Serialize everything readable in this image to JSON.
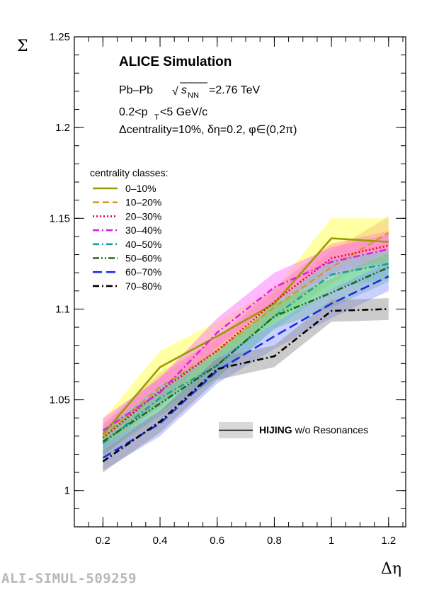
{
  "chart_data": {
    "type": "line",
    "title": "ALICE Simulation",
    "system_label": "Pb–Pb",
    "energy_symbol": "√",
    "energy_var": "s",
    "energy_sub": "NN",
    "energy_value": "=2.76 TeV",
    "pt_label": "0.2<p",
    "pt_sub": "T",
    "pt_rest": "<5 GeV/c",
    "cut_label": "Δcentrality=10%, δη=0.2, φ∈(0,2π)",
    "xlabel": "Δη",
    "ylabel": "Σ",
    "xlim": [
      0.1,
      1.26
    ],
    "ylim": [
      0.98,
      1.25
    ],
    "x_ticks": [
      0.2,
      0.4,
      0.6,
      0.8,
      1,
      1.2
    ],
    "x_tick_labels": [
      "0.2",
      "0.4",
      "0.6",
      "0.8",
      "1",
      "1.2"
    ],
    "y_ticks": [
      1,
      1.05,
      1.1,
      1.15,
      1.2,
      1.25
    ],
    "y_tick_labels": [
      "1",
      "1.05",
      "1.1",
      "1.15",
      "1.2",
      "1.25"
    ],
    "legend_title": "centrality classes:",
    "legend_placement": "left",
    "grid": false,
    "x": [
      0.2,
      0.4,
      0.6,
      0.8,
      1.0,
      1.2
    ],
    "series": [
      {
        "name": "0–10%",
        "color": "#9a9a00",
        "dash": "solid",
        "band_color": "#ffff33",
        "values": [
          1.031,
          1.068,
          1.085,
          1.103,
          1.139,
          1.137
        ],
        "band": [
          0.008,
          0.009,
          0.008,
          0.008,
          0.011,
          0.013
        ]
      },
      {
        "name": "10–20%",
        "color": "#d79a2a",
        "dash": "dash",
        "band_color": "#f0c070",
        "values": [
          1.03,
          1.057,
          1.077,
          1.101,
          1.123,
          1.142
        ],
        "band": [
          0.007,
          0.008,
          0.007,
          0.008,
          0.009,
          0.009
        ]
      },
      {
        "name": "20–30%",
        "color": "#e8002e",
        "dash": "dot",
        "band_color": "#ff8fa0",
        "values": [
          1.029,
          1.055,
          1.077,
          1.104,
          1.128,
          1.135
        ],
        "band": [
          0.007,
          0.008,
          0.007,
          0.008,
          0.008,
          0.008
        ]
      },
      {
        "name": "30–40%",
        "color": "#e020e0",
        "dash": "dashdot",
        "band_color": "#ff66ff",
        "values": [
          1.033,
          1.054,
          1.087,
          1.112,
          1.126,
          1.133
        ],
        "band": [
          0.007,
          0.008,
          0.008,
          0.008,
          0.008,
          0.008
        ]
      },
      {
        "name": "40–50%",
        "color": "#1a9e9e",
        "dash": "dashdot",
        "band_color": "#55d8d8",
        "values": [
          1.026,
          1.051,
          1.069,
          1.096,
          1.119,
          1.125
        ],
        "band": [
          0.007,
          0.007,
          0.007,
          0.007,
          0.008,
          0.008
        ]
      },
      {
        "name": "50–60%",
        "color": "#1a6a1a",
        "dash": "dashdotdot",
        "band_color": "#66cc66",
        "values": [
          1.027,
          1.048,
          1.069,
          1.096,
          1.109,
          1.123
        ],
        "band": [
          0.007,
          0.007,
          0.007,
          0.007,
          0.008,
          0.008
        ]
      },
      {
        "name": "60–70%",
        "color": "#1a2ee0",
        "dash": "longdash",
        "band_color": "#8a96ff",
        "values": [
          1.018,
          1.037,
          1.066,
          1.085,
          1.103,
          1.118
        ],
        "band": [
          0.007,
          0.007,
          0.007,
          0.007,
          0.008,
          0.008
        ]
      },
      {
        "name": "70–80%",
        "color": "#000000",
        "dash": "dashdot",
        "band_color": "#8c8c8c",
        "values": [
          1.016,
          1.038,
          1.067,
          1.074,
          1.099,
          1.1
        ],
        "band": [
          0.006,
          0.006,
          0.006,
          0.006,
          0.006,
          0.006
        ]
      }
    ],
    "hijing_legend_bold": "HIJING",
    "hijing_legend_rest": " w/o Resonances"
  },
  "footer_label": "ALI-SIMUL-509259"
}
